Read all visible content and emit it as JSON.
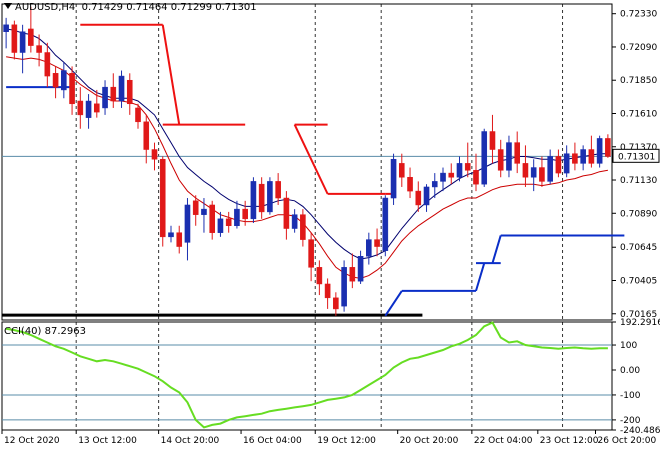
{
  "header": {
    "symbol": "AUDUSD,H4",
    "ohlc": "0.71429 0.71464 0.71299 0.71301"
  },
  "indicator": {
    "name": "CCI(40)",
    "value": "87.2963"
  },
  "current_price_label": "0.71301",
  "colors": {
    "bull": "#1a2fb0",
    "bear": "#e01818",
    "ma_navy": "#00006e",
    "ma_red": "#cc0000",
    "stop_red": "#ee1111",
    "stop_blue": "#0a2ec8",
    "cci": "#66dd22",
    "level_line": "#5a8ca8",
    "grid": "#9aa5b0",
    "axis": "#000000",
    "price_tag_bg": "#ffffff"
  },
  "chart_data": [
    {
      "type": "candlestick",
      "title": "AUDUSD,H4",
      "y_ticks": [
        "0.72330",
        "0.72090",
        "0.71850",
        "0.71610",
        "0.71370",
        "0.71130",
        "0.70890",
        "0.70645",
        "0.70405",
        "0.70165"
      ],
      "ylim": [
        0.7012,
        0.724
      ],
      "x_labels": [
        "12 Oct 2020",
        "13 Oct 12:00",
        "14 Oct 20:00",
        "16 Oct 04:00",
        "19 Oct 12:00",
        "20 Oct 20:00",
        "22 Oct 04:00",
        "23 Oct 12:00",
        "26 Oct 20:00"
      ],
      "current_price": 0.71301,
      "candles": [
        [
          0.722,
          0.723,
          0.7208,
          0.7225
        ],
        [
          0.7225,
          0.7228,
          0.72,
          0.7205
        ],
        [
          0.7205,
          0.7225,
          0.719,
          0.722
        ],
        [
          0.7222,
          0.7238,
          0.7205,
          0.721
        ],
        [
          0.721,
          0.7218,
          0.7195,
          0.7205
        ],
        [
          0.7205,
          0.7212,
          0.718,
          0.7188
        ],
        [
          0.719,
          0.7195,
          0.7172,
          0.718
        ],
        [
          0.7178,
          0.7198,
          0.7172,
          0.7192
        ],
        [
          0.719,
          0.7195,
          0.716,
          0.7168
        ],
        [
          0.717,
          0.718,
          0.715,
          0.716
        ],
        [
          0.7158,
          0.7175,
          0.715,
          0.717
        ],
        [
          0.7168,
          0.7178,
          0.7158,
          0.7162
        ],
        [
          0.7165,
          0.7185,
          0.716,
          0.718
        ],
        [
          0.718,
          0.719,
          0.7165,
          0.717
        ],
        [
          0.717,
          0.7192,
          0.7165,
          0.7188
        ],
        [
          0.7185,
          0.719,
          0.716,
          0.7168
        ],
        [
          0.7165,
          0.7168,
          0.715,
          0.7155
        ],
        [
          0.7155,
          0.716,
          0.7125,
          0.7135
        ],
        [
          0.7135,
          0.714,
          0.712,
          0.7128
        ],
        [
          0.7128,
          0.713,
          0.7065,
          0.7072
        ],
        [
          0.7072,
          0.708,
          0.7068,
          0.7075
        ],
        [
          0.7075,
          0.708,
          0.706,
          0.7065
        ],
        [
          0.7068,
          0.71,
          0.7055,
          0.7095
        ],
        [
          0.7098,
          0.7102,
          0.708,
          0.7088
        ],
        [
          0.7088,
          0.71,
          0.7075,
          0.7092
        ],
        [
          0.7095,
          0.7098,
          0.707,
          0.7075
        ],
        [
          0.7075,
          0.709,
          0.7072,
          0.7085
        ],
        [
          0.7085,
          0.709,
          0.7075,
          0.708
        ],
        [
          0.708,
          0.7098,
          0.7078,
          0.7092
        ],
        [
          0.7092,
          0.7098,
          0.708,
          0.7085
        ],
        [
          0.7085,
          0.7115,
          0.7082,
          0.7112
        ],
        [
          0.711,
          0.7115,
          0.7085,
          0.709
        ],
        [
          0.709,
          0.7115,
          0.7088,
          0.7112
        ],
        [
          0.7112,
          0.7118,
          0.7095,
          0.71
        ],
        [
          0.71,
          0.7105,
          0.707,
          0.7078
        ],
        [
          0.7078,
          0.7092,
          0.7075,
          0.7088
        ],
        [
          0.7088,
          0.7092,
          0.7065,
          0.707
        ],
        [
          0.707,
          0.7075,
          0.704,
          0.705
        ],
        [
          0.705,
          0.7055,
          0.703,
          0.7038
        ],
        [
          0.7038,
          0.7042,
          0.702,
          0.7028
        ],
        [
          0.7028,
          0.7032,
          0.7015,
          0.702
        ],
        [
          0.7022,
          0.7055,
          0.7018,
          0.705
        ],
        [
          0.705,
          0.706,
          0.7035,
          0.704
        ],
        [
          0.704,
          0.7062,
          0.7038,
          0.7058
        ],
        [
          0.7058,
          0.7075,
          0.7052,
          0.707
        ],
        [
          0.707,
          0.7078,
          0.7058,
          0.7065
        ],
        [
          0.7062,
          0.7102,
          0.7058,
          0.71
        ],
        [
          0.71,
          0.7132,
          0.7095,
          0.7128
        ],
        [
          0.7125,
          0.7132,
          0.7108,
          0.7115
        ],
        [
          0.7115,
          0.7122,
          0.71,
          0.7105
        ],
        [
          0.7105,
          0.7112,
          0.709,
          0.7095
        ],
        [
          0.7095,
          0.711,
          0.709,
          0.7108
        ],
        [
          0.7108,
          0.7118,
          0.71,
          0.7112
        ],
        [
          0.7112,
          0.7122,
          0.7105,
          0.7118
        ],
        [
          0.7118,
          0.7125,
          0.711,
          0.7115
        ],
        [
          0.7115,
          0.713,
          0.7112,
          0.7125
        ],
        [
          0.7125,
          0.714,
          0.7115,
          0.712
        ],
        [
          0.712,
          0.7132,
          0.7105,
          0.711
        ],
        [
          0.711,
          0.715,
          0.7108,
          0.7148
        ],
        [
          0.7148,
          0.716,
          0.7125,
          0.7135
        ],
        [
          0.7135,
          0.7142,
          0.7115,
          0.712
        ],
        [
          0.712,
          0.7145,
          0.7115,
          0.714
        ],
        [
          0.714,
          0.7148,
          0.7118,
          0.7125
        ],
        [
          0.7125,
          0.7138,
          0.7108,
          0.7115
        ],
        [
          0.7115,
          0.7128,
          0.7105,
          0.7122
        ],
        [
          0.7122,
          0.713,
          0.7108,
          0.7112
        ],
        [
          0.7112,
          0.7135,
          0.711,
          0.713
        ],
        [
          0.713,
          0.7135,
          0.7115,
          0.7118
        ],
        [
          0.7118,
          0.7138,
          0.7115,
          0.7132
        ],
        [
          0.7132,
          0.714,
          0.712,
          0.7125
        ],
        [
          0.7125,
          0.7138,
          0.712,
          0.7135
        ],
        [
          0.7135,
          0.7145,
          0.7122,
          0.7125
        ],
        [
          0.7125,
          0.7145,
          0.7122,
          0.7143
        ],
        [
          0.7143,
          0.7146,
          0.7129,
          0.713
        ]
      ],
      "ma_blue": [
        0.7222,
        0.7221,
        0.7219,
        0.7218,
        0.7215,
        0.721,
        0.7203,
        0.7198,
        0.7192,
        0.7186,
        0.718,
        0.7176,
        0.7174,
        0.7172,
        0.7172,
        0.7172,
        0.717,
        0.7165,
        0.716,
        0.715,
        0.714,
        0.713,
        0.7122,
        0.7117,
        0.7112,
        0.7108,
        0.7103,
        0.7099,
        0.7096,
        0.7094,
        0.7094,
        0.7094,
        0.7096,
        0.7098,
        0.7099,
        0.7098,
        0.7094,
        0.7088,
        0.7081,
        0.7074,
        0.7068,
        0.7063,
        0.7059,
        0.7056,
        0.7057,
        0.7059,
        0.7062,
        0.707,
        0.7078,
        0.7085,
        0.7092,
        0.7097,
        0.7102,
        0.7106,
        0.711,
        0.7114,
        0.7117,
        0.7119,
        0.7122,
        0.7125,
        0.7127,
        0.7128,
        0.713,
        0.713,
        0.7129,
        0.7128,
        0.7128,
        0.7127,
        0.7128,
        0.7129,
        0.713,
        0.7131,
        0.7132,
        0.7132
      ],
      "ma_red": [
        0.7202,
        0.7201,
        0.72,
        0.7201,
        0.72,
        0.7198,
        0.7195,
        0.7192,
        0.7187,
        0.7182,
        0.7178,
        0.7174,
        0.7172,
        0.717,
        0.717,
        0.7169,
        0.7167,
        0.716,
        0.715,
        0.7138,
        0.7125,
        0.7113,
        0.7105,
        0.71,
        0.7096,
        0.7092,
        0.7088,
        0.7086,
        0.7084,
        0.7083,
        0.7083,
        0.7084,
        0.7086,
        0.7088,
        0.7088,
        0.7087,
        0.7082,
        0.7075,
        0.7067,
        0.7058,
        0.705,
        0.7046,
        0.7043,
        0.7042,
        0.7044,
        0.7048,
        0.7053,
        0.7061,
        0.7069,
        0.7075,
        0.708,
        0.7084,
        0.7088,
        0.7092,
        0.7095,
        0.7098,
        0.71,
        0.71,
        0.7103,
        0.7106,
        0.7108,
        0.7109,
        0.711,
        0.711,
        0.711,
        0.7109,
        0.711,
        0.7111,
        0.7113,
        0.7114,
        0.7116,
        0.7117,
        0.7119,
        0.712
      ],
      "stop_red": [
        {
          "from": 9,
          "to": 19,
          "value": 0.7225
        },
        {
          "from": 19,
          "to": 29,
          "value": 0.7153
        },
        {
          "from": 35,
          "to": 39,
          "value": 0.7153
        },
        {
          "from": 39,
          "to": 46,
          "value": 0.7103
        },
        {
          "from": 46,
          "to": 47,
          "value": 0.7103
        }
      ],
      "stop_red_diag": [
        {
          "from": 19,
          "to": 21,
          "v1": 0.7225,
          "v2": 0.7153
        },
        {
          "from": 35,
          "to": 39,
          "v1": 0.7153,
          "v2": 0.7103
        }
      ],
      "stop_blue": [
        {
          "from": 0,
          "to": 8,
          "value": 0.718
        },
        {
          "from": 48,
          "to": 57,
          "value": 0.7033
        },
        {
          "from": 57,
          "to": 60,
          "value": 0.7053
        },
        {
          "from": 60,
          "to": 75,
          "value": 0.7073
        }
      ],
      "stop_blue_diag": [
        {
          "from": 46,
          "to": 48,
          "v1": 0.7015,
          "v2": 0.7033
        },
        {
          "from": 57,
          "to": 58,
          "v1": 0.7033,
          "v2": 0.7053
        },
        {
          "from": 59,
          "to": 60,
          "v1": 0.7053,
          "v2": 0.7073
        }
      ],
      "bottom_bar": {
        "from": 0,
        "to": 51,
        "value": 0.70155
      }
    },
    {
      "type": "line",
      "title": "CCI(40) 87.2963",
      "y_ticks": [
        "192.2916",
        "100",
        "0.00",
        "-100",
        "-200",
        "-240.4861"
      ],
      "ylim": [
        -240.4861,
        192.2916
      ],
      "levels": [
        100,
        -100,
        -200
      ],
      "values": [
        165,
        160,
        152,
        140,
        125,
        110,
        95,
        85,
        70,
        55,
        45,
        35,
        40,
        35,
        25,
        15,
        5,
        -10,
        -25,
        -45,
        -70,
        -90,
        -130,
        -200,
        -230,
        -220,
        -215,
        -200,
        -190,
        -185,
        -180,
        -175,
        -165,
        -160,
        -155,
        -150,
        -145,
        -140,
        -130,
        -120,
        -115,
        -110,
        -100,
        -80,
        -60,
        -40,
        -20,
        10,
        30,
        45,
        50,
        60,
        70,
        80,
        95,
        105,
        120,
        140,
        175,
        190,
        130,
        110,
        115,
        100,
        95,
        90,
        88,
        85,
        88,
        90,
        87,
        85,
        87,
        87
      ]
    }
  ]
}
